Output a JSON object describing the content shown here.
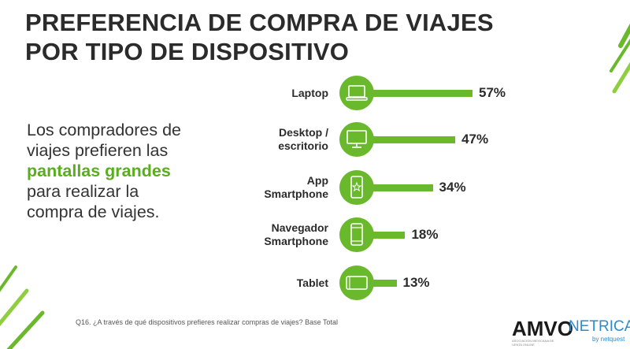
{
  "header": {
    "title_line1": "PREFERENCIA DE COMPRA DE VIAJES",
    "title_line2": "POR TIPO DE DISPOSITIVO"
  },
  "lead": {
    "line1": "Los compradores de",
    "line2": "viajes prefieren las",
    "highlight": "pantallas grandes",
    "line4": "para realizar la",
    "line5": "compra de viajes."
  },
  "colors": {
    "accent": "#6ab82b",
    "bar": "#6ab82b",
    "highlight": "#5aad1e"
  },
  "chart_data": {
    "type": "bar",
    "orientation": "horizontal",
    "categories": [
      {
        "line1": "Laptop",
        "line2": ""
      },
      {
        "line1": "Desktop /",
        "line2": "escritorio"
      },
      {
        "line1": "App",
        "line2": "Smartphone"
      },
      {
        "line1": "Navegador",
        "line2": "Smartphone"
      },
      {
        "line1": "Tablet",
        "line2": ""
      }
    ],
    "icons": [
      "laptop-icon",
      "desktop-icon",
      "app-smartphone-icon",
      "browser-smartphone-icon",
      "tablet-icon"
    ],
    "values": [
      57,
      47,
      34,
      18,
      13
    ],
    "value_labels": [
      "57%",
      "47%",
      "34%",
      "18%",
      "13%"
    ],
    "unit": "%",
    "xlim": [
      0,
      60
    ]
  },
  "footer": {
    "footnote": "Q16. ¿A través de qué dispositivos prefieres realizar compras de viajes? Base Total",
    "logo_amvo": "AMVO",
    "logo_amvo_sub": "ASOCIACIÓN MEXICANA DE VENTA ONLINE",
    "logo_netrica": "NETRICA",
    "logo_netrica_sub": "by netquest"
  }
}
